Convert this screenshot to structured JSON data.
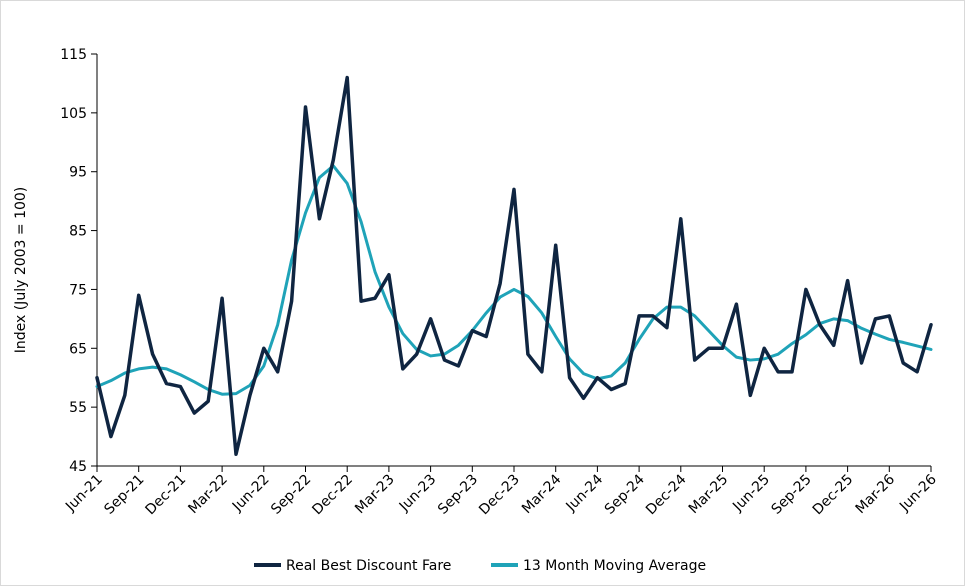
{
  "chart_data": {
    "type": "line",
    "title": "",
    "xlabel": "",
    "ylabel": "Index (July 2003 = 100)",
    "ylim": [
      45,
      115
    ],
    "yticks": [
      45,
      55,
      65,
      75,
      85,
      95,
      105,
      115
    ],
    "grid": false,
    "legend_position": "bottom-center",
    "x": [
      "Jun-21",
      "Jul-21",
      "Aug-21",
      "Sep-21",
      "Oct-21",
      "Nov-21",
      "Dec-21",
      "Jan-22",
      "Feb-22",
      "Mar-22",
      "Apr-22",
      "May-22",
      "Jun-22",
      "Jul-22",
      "Aug-22",
      "Sep-22",
      "Oct-22",
      "Nov-22",
      "Dec-22",
      "Jan-23",
      "Feb-23",
      "Mar-23",
      "Apr-23",
      "May-23",
      "Jun-23",
      "Jul-23",
      "Aug-23",
      "Sep-23",
      "Oct-23",
      "Nov-23",
      "Dec-23",
      "Jan-24",
      "Feb-24",
      "Mar-24",
      "Apr-24",
      "May-24",
      "Jun-24",
      "Jul-24",
      "Aug-24",
      "Sep-24",
      "Oct-24",
      "Nov-24",
      "Dec-24",
      "Jan-25",
      "Feb-25",
      "Mar-25",
      "Apr-25",
      "May-25",
      "Jun-25",
      "Jul-25",
      "Aug-25",
      "Sep-25",
      "Oct-25",
      "Nov-25",
      "Dec-25",
      "Jan-26",
      "Feb-26",
      "Mar-26",
      "Apr-26",
      "May-26",
      "Jun-26"
    ],
    "xtick_labels": [
      "Jun-21",
      "Sep-21",
      "Dec-21",
      "Mar-22",
      "Jun-22",
      "Sep-22",
      "Dec-22",
      "Mar-23",
      "Jun-23",
      "Sep-23",
      "Dec-23",
      "Mar-24",
      "Jun-24",
      "Sep-24",
      "Dec-24",
      "Mar-25",
      "Jun-25",
      "Sep-25",
      "Dec-25",
      "Mar-26",
      "Jun-26"
    ],
    "series": [
      {
        "name": "Real Best Discount Fare",
        "color": "#0f2541",
        "values": [
          60,
          50,
          57,
          74,
          64,
          59,
          58.5,
          54,
          56,
          73.5,
          47,
          57,
          65,
          61,
          73,
          106,
          87,
          97,
          111,
          73,
          73.5,
          77.5,
          61.5,
          64,
          70,
          63,
          62,
          68,
          67,
          76,
          92,
          64,
          61,
          82.5,
          60,
          56.5,
          60,
          58,
          59,
          70.5,
          70.5,
          68.5,
          87,
          63,
          65,
          65,
          72.5,
          57,
          65,
          61,
          61,
          75,
          69,
          65.5,
          76.5,
          62.5,
          70,
          70.5,
          62.5,
          61,
          69
        ]
      },
      {
        "name": "13 Month Moving Average",
        "color": "#1fa3b8",
        "values": [
          58.5,
          59.5,
          60.8,
          61.5,
          61.8,
          61.5,
          60.5,
          59.3,
          58,
          57.2,
          57.3,
          58.7,
          62,
          69,
          80,
          88,
          94,
          96,
          93,
          86.5,
          78,
          72,
          67.5,
          64.8,
          63.7,
          64,
          65.5,
          68,
          71,
          73.7,
          75,
          73.8,
          71,
          67,
          63.2,
          60.7,
          59.8,
          60.3,
          62.5,
          66.5,
          70,
          72,
          72,
          70.5,
          68,
          65.5,
          63.5,
          63,
          63.2,
          64,
          65.8,
          67.3,
          69.2,
          70,
          69.7,
          68.4,
          67.4,
          66.5,
          66,
          65.4,
          64.8
        ]
      }
    ]
  }
}
